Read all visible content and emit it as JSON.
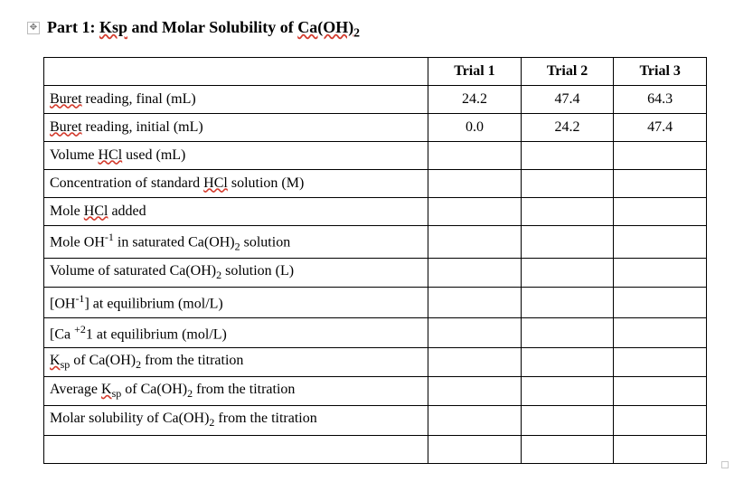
{
  "title": {
    "prefix": "Part 1: ",
    "ksp": "Ksp",
    "mid": " and Molar Solubility of ",
    "caoh": "Ca(OH)",
    "sub": "2"
  },
  "headers": {
    "blank": "",
    "t1": "Trial 1",
    "t2": "Trial 2",
    "t3": "Trial 3"
  },
  "rows": [
    {
      "label_pre": "Buret",
      "label_spell": true,
      "label_post": " reading, final (mL)",
      "t1": "24.2",
      "t2": "47.4",
      "t3": "64.3"
    },
    {
      "label_pre": "Buret",
      "label_spell": true,
      "label_post": " reading, initial (mL)",
      "t1": "0.0",
      "t2": "24.2",
      "t3": "47.4"
    },
    {
      "label_html": "Volume <span class='spell'>HCl</span> used (mL)",
      "t1": "",
      "t2": "",
      "t3": ""
    },
    {
      "label_html": "Concentration of standard <span class='spell'>HCl</span> solution (M)",
      "t1": "",
      "t2": "",
      "t3": ""
    },
    {
      "label_html": "Mole <span class='spell'>HCl</span> added",
      "t1": "",
      "t2": "",
      "t3": ""
    },
    {
      "label_html": "Mole OH<sup>-1</sup> in saturated Ca(OH)<sub>2</sub> solution",
      "t1": "",
      "t2": "",
      "t3": ""
    },
    {
      "label_html": "Volume of saturated Ca(OH)<sub>2</sub> solution (L)",
      "t1": "",
      "t2": "",
      "t3": ""
    },
    {
      "label_html": "[OH<sup>-1</sup>] at equilibrium (mol/L)",
      "t1": "",
      "t2": "",
      "t3": ""
    },
    {
      "label_html": "[Ca <sup>+2</sup>1 at equilibrium (mol/L)",
      "t1": "",
      "t2": "",
      "t3": ""
    },
    {
      "label_html": "<span class='spell'>K<sub>sp</sub></span> of Ca(OH)<sub>2</sub> from the titration",
      "t1": "",
      "t2": "",
      "t3": ""
    },
    {
      "label_html": "Average <span class='spell'>K<sub>sp</sub></span> of Ca(OH)<sub>2</sub> from the titration",
      "t1": "",
      "t2": "",
      "t3": ""
    },
    {
      "label_html": "Molar solubility of Ca(OH)<sub>2</sub> from the titration",
      "t1": "",
      "t2": "",
      "t3": ""
    },
    {
      "label_html": "",
      "t1": "",
      "t2": "",
      "t3": ""
    }
  ]
}
